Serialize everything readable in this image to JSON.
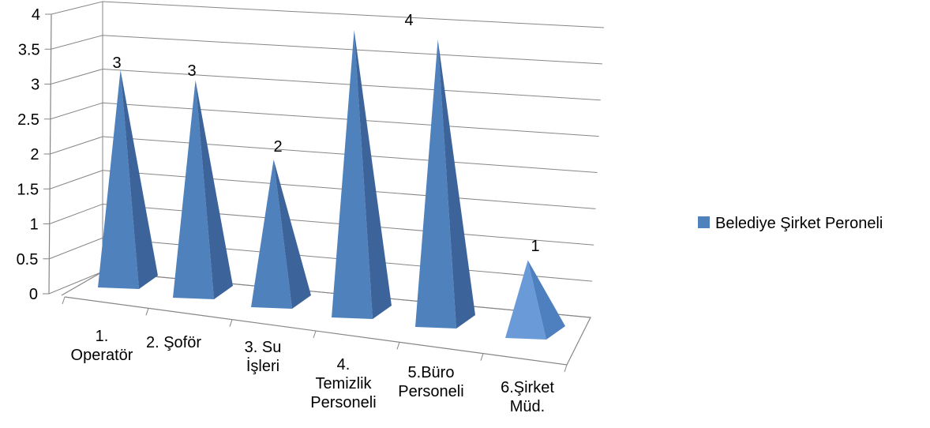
{
  "chart_data": {
    "type": "bar",
    "shape": "3d-pyramid",
    "categories": [
      "1. Operatör",
      "2. Şoför",
      "3. Su İşleri",
      "4. Temizlik Personeli",
      "5.Büro Personeli",
      "6.Şirket Müd."
    ],
    "category_label_lines": [
      [
        "1.",
        "Operatör"
      ],
      [
        "2. Şoför"
      ],
      [
        "3. Su",
        "İşleri"
      ],
      [
        "4.",
        "Temizlik",
        "Personeli"
      ],
      [
        "5.Büro",
        "Personeli"
      ],
      [
        "6.Şirket",
        "Müd."
      ]
    ],
    "series": [
      {
        "name": "Belediye Şirket Peroneli",
        "values": [
          3,
          3,
          2,
          4,
          4,
          1
        ],
        "color": "#4f81bd"
      }
    ],
    "data_labels": [
      "3",
      "3",
      "2",
      "4",
      "4",
      "1"
    ],
    "y_ticks": [
      "0",
      "0.5",
      "1",
      "1.5",
      "2",
      "2.5",
      "3",
      "3.5",
      "4"
    ],
    "ylim": [
      0,
      4
    ],
    "grid": true,
    "legend_position": "right"
  }
}
